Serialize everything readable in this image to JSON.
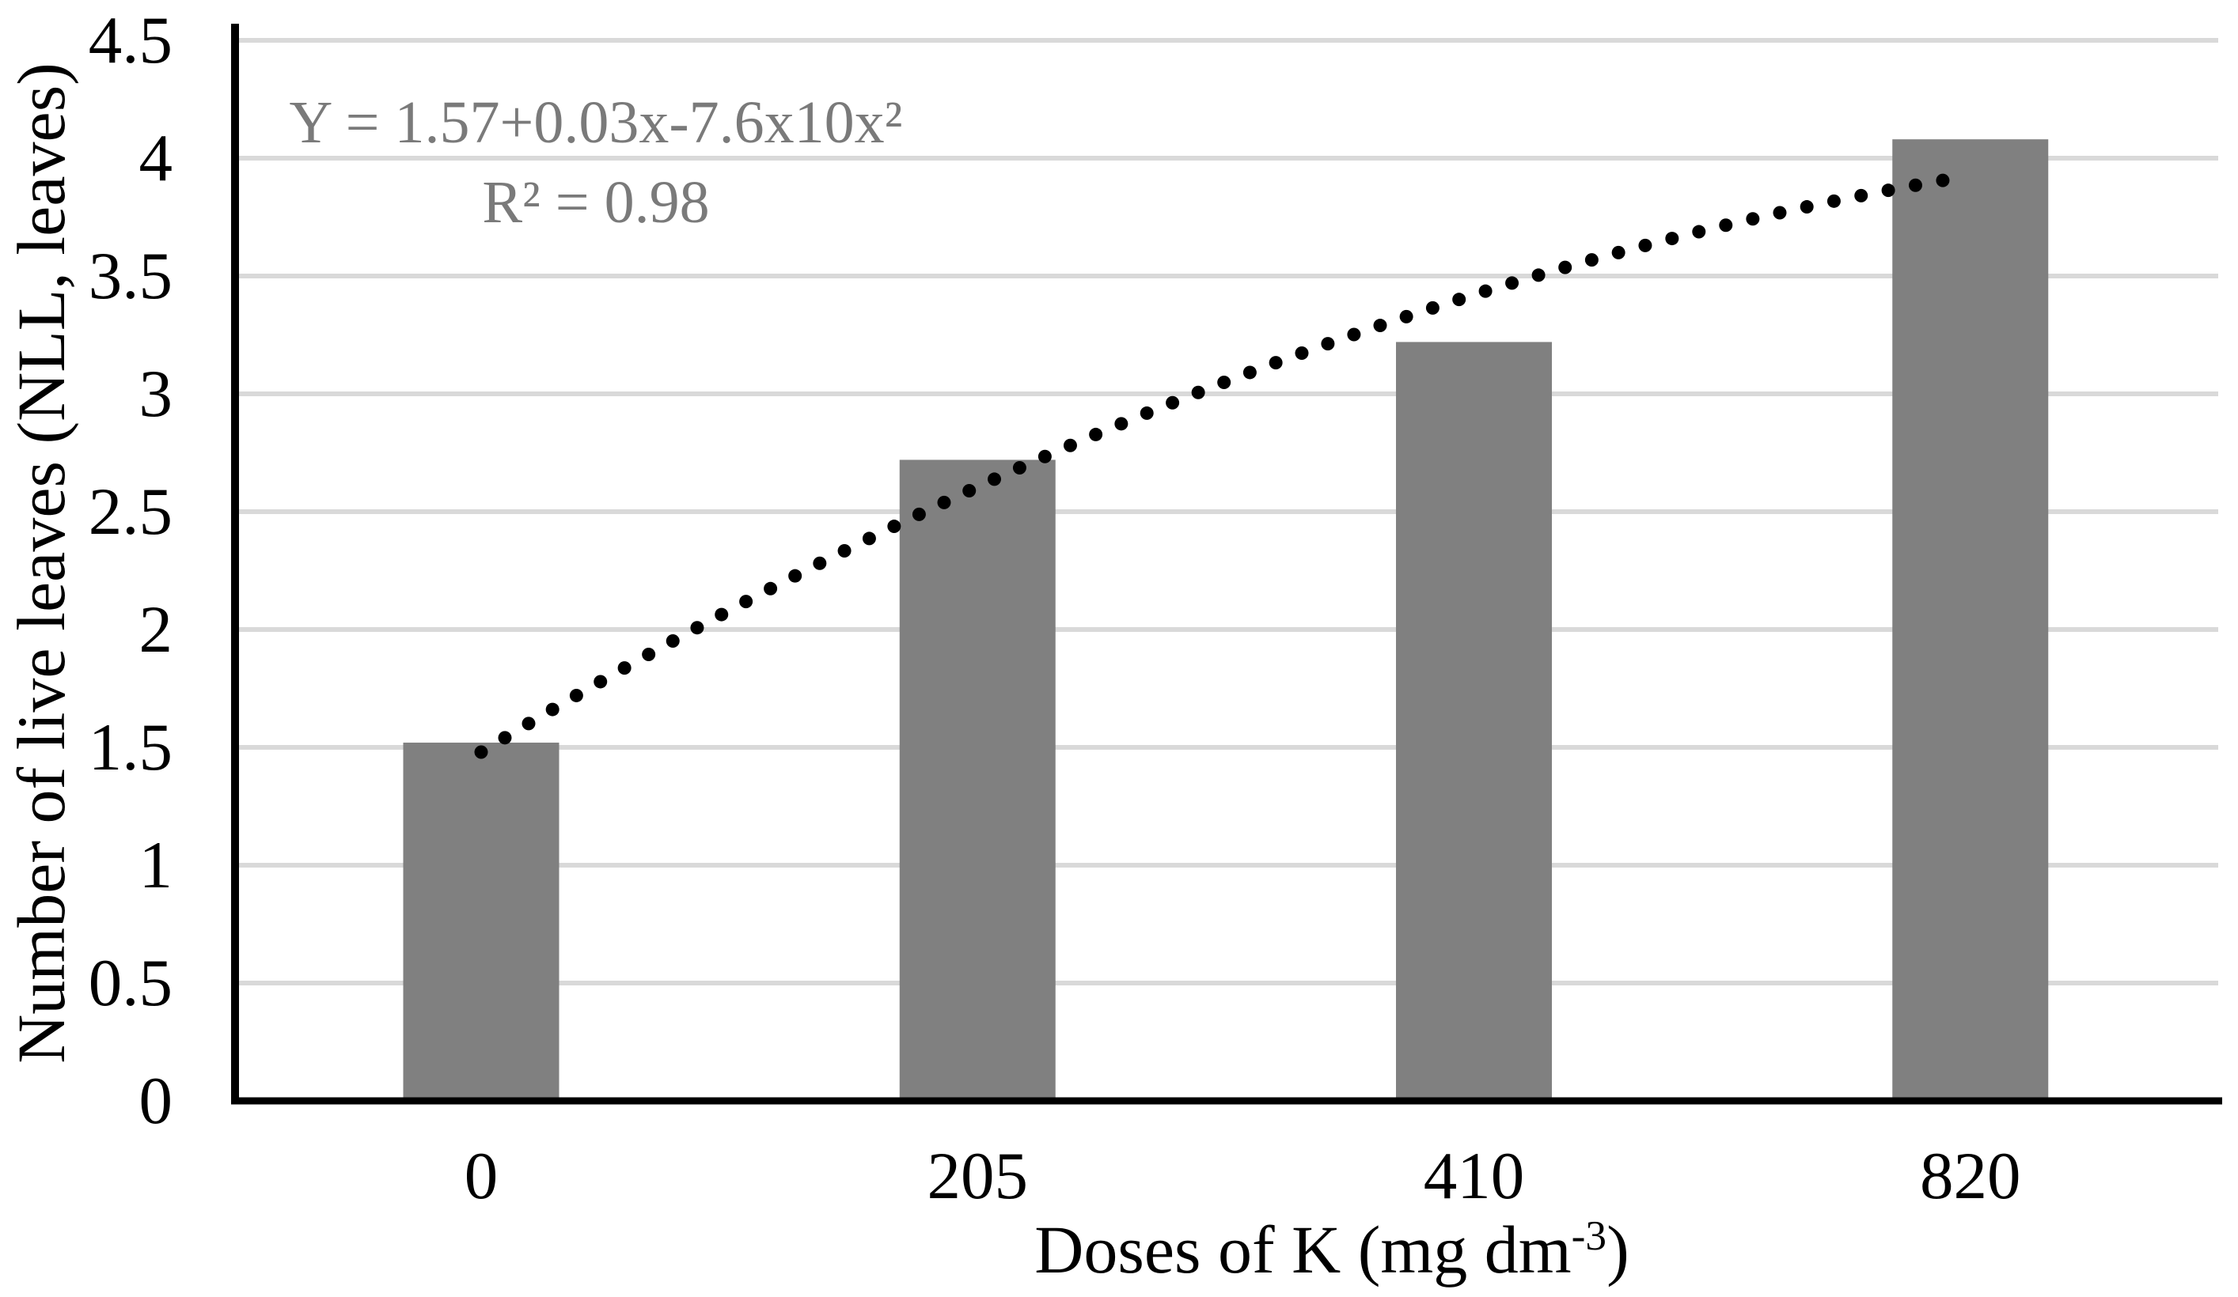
{
  "chart_data": {
    "type": "bar",
    "title": "",
    "categories": [
      "0",
      "205",
      "410",
      "820"
    ],
    "series": [
      {
        "name": "Number of live leaves",
        "values": [
          1.52,
          2.72,
          3.22,
          4.08
        ]
      }
    ],
    "trendline": {
      "style": "dotted",
      "values_at_categories": [
        1.48,
        2.6,
        3.38,
        3.92
      ],
      "equation_line1": "Y = 1.57+0.03x-7.6x10x²",
      "equation_line2": "R² = 0.98"
    },
    "xlabel": {
      "main": "Doses of K (mg dm",
      "superscript": "-3",
      "suffix": ")"
    },
    "ylabel": "Number of live leaves (NLL, leaves)",
    "ylim": [
      0,
      4.5
    ],
    "ytick_step": 0.5,
    "yticks": [
      "0",
      "0.5",
      "1",
      "1.5",
      "2",
      "2.5",
      "3",
      "3.5",
      "4",
      "4.5"
    ],
    "grid": "horizontal",
    "legend": "none",
    "colors": {
      "bar": "#808080",
      "gridline": "#d9d9d9",
      "axis": "#000000",
      "trend_dots": "#000000",
      "equation_text": "#7a7a7a",
      "tick_text": "#000000"
    }
  }
}
